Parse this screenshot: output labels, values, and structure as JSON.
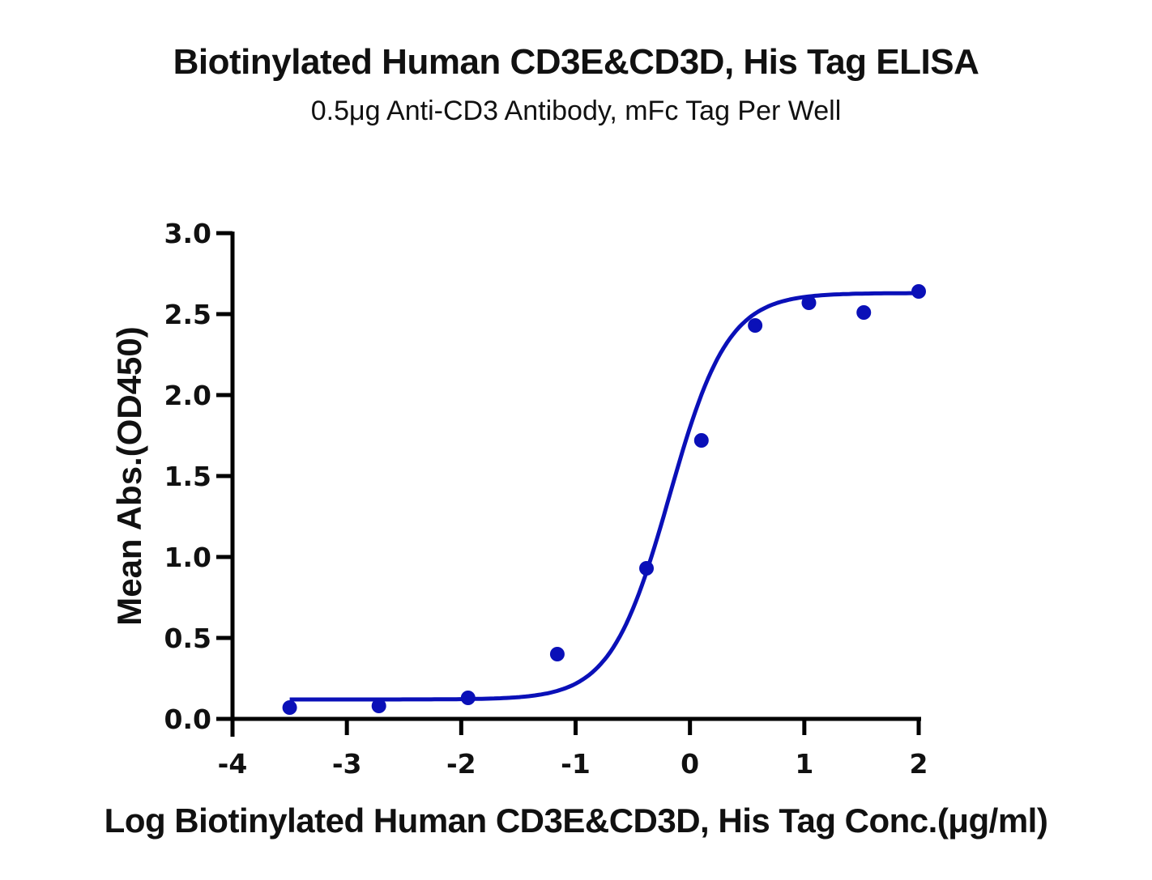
{
  "chart_data": {
    "type": "scatter",
    "title": "Biotinylated Human CD3E&CD3D, His Tag ELISA",
    "subtitle": "0.5μg Anti-CD3 Antibody, mFc Tag Per Well",
    "xlabel": "Log Biotinylated Human CD3E&CD3D, His Tag Conc.(μg/ml)",
    "ylabel": "Mean Abs.(OD450)",
    "xlim": [
      -4,
      2
    ],
    "ylim": [
      0,
      3.0
    ],
    "x_ticks": [
      "-4",
      "-3",
      "-2",
      "-1",
      "0",
      "1",
      "2"
    ],
    "y_ticks": [
      "0.0",
      "0.5",
      "1.0",
      "1.5",
      "2.0",
      "2.5",
      "3.0"
    ],
    "grid": false,
    "legend": null,
    "series": [
      {
        "name": "Mean Abs.",
        "color": "#0a10b8",
        "x": [
          -3.5,
          -2.72,
          -1.94,
          -1.16,
          -0.38,
          0.1,
          0.57,
          1.04,
          1.52,
          2.0
        ],
        "y": [
          0.07,
          0.08,
          0.13,
          0.4,
          0.93,
          1.72,
          2.43,
          2.57,
          2.51,
          2.64
        ]
      }
    ],
    "fit": {
      "type": "4PL sigmoidal",
      "color": "#0a10b8",
      "bottom": 0.12,
      "top": 2.63,
      "logEC50": -0.18,
      "hill": 1.7,
      "x_range": [
        -3.5,
        2.0
      ]
    }
  }
}
